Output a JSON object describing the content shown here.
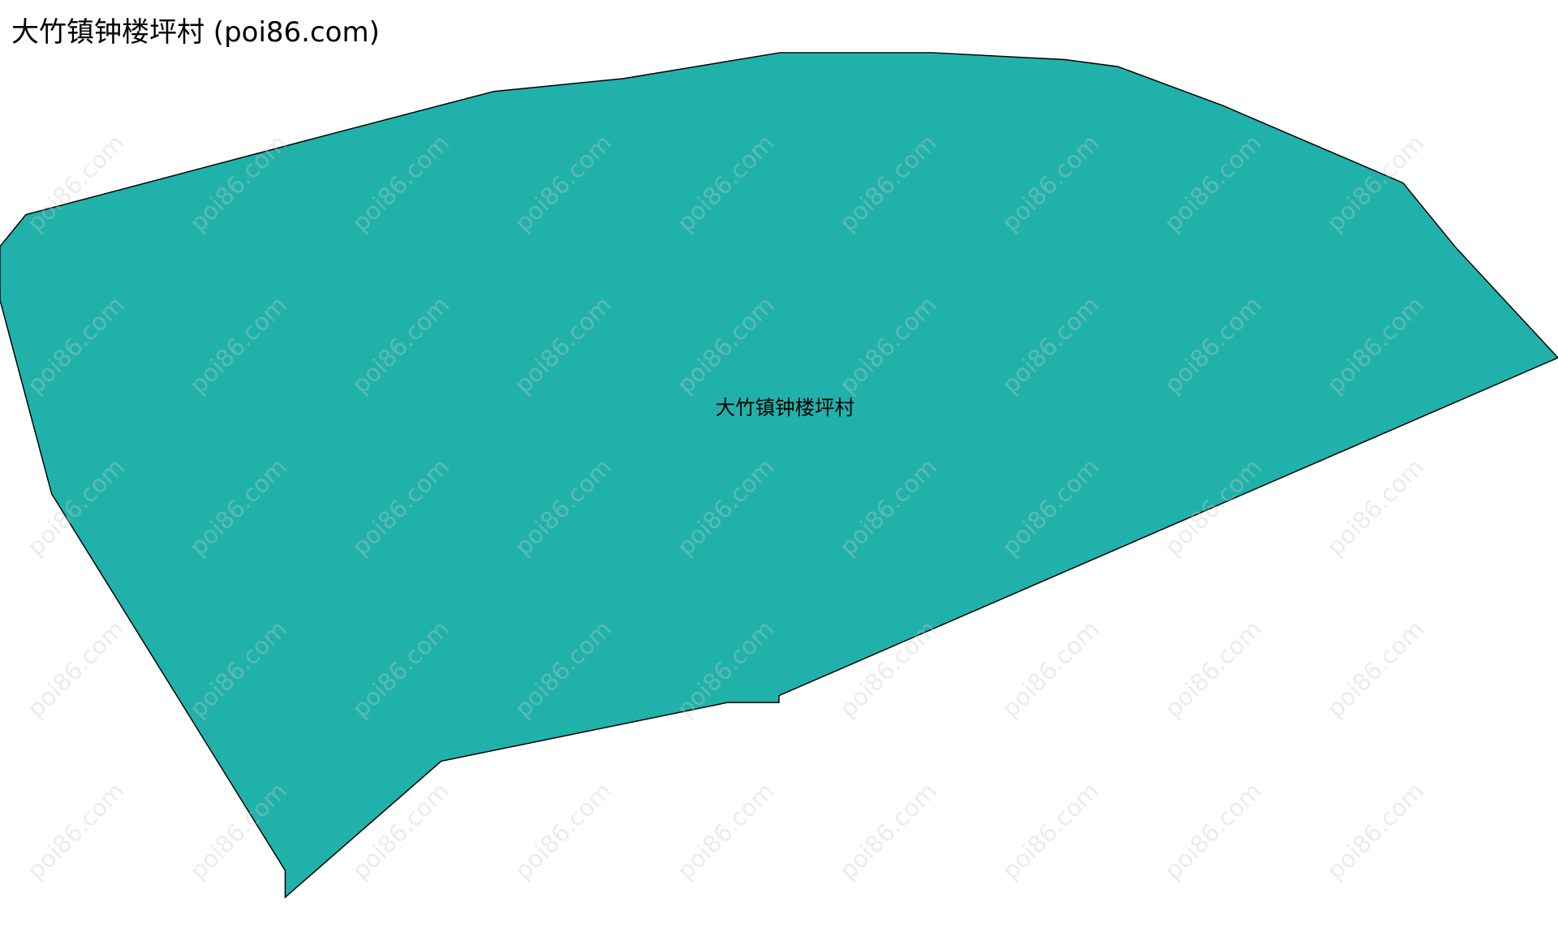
{
  "title": "大竹镇钟楼坪村 (poi86.com)",
  "map": {
    "region_label": "大竹镇钟楼坪村",
    "watermark": "poi86.com",
    "fill_color": "#20b2aa",
    "stroke_color": "#000000"
  }
}
